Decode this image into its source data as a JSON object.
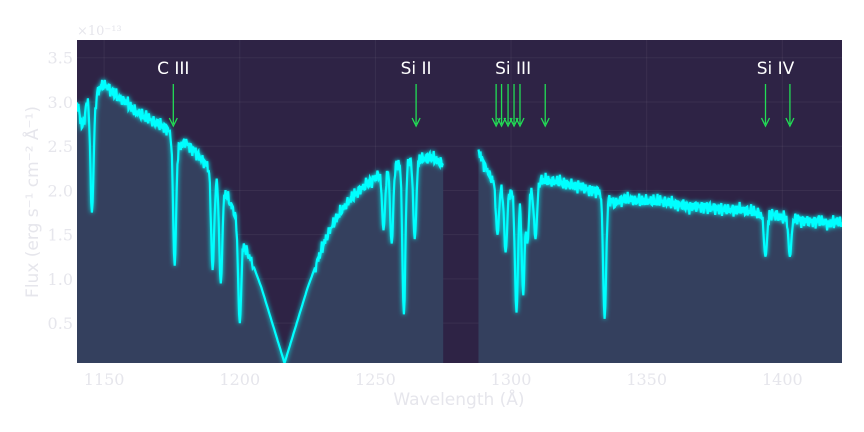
{
  "chart_data": {
    "type": "line",
    "title": "",
    "xlabel": "Wavelength (Å)",
    "ylabel": "Flux (erg s⁻¹ cm⁻² Å⁻¹)",
    "y_exponent_label": "×10⁻¹³",
    "y_scale_factor": 1e-13,
    "xlim": [
      1140,
      1422
    ],
    "ylim": [
      0.05,
      3.7
    ],
    "xticks": [
      1150,
      1200,
      1250,
      1300,
      1350,
      1400
    ],
    "yticks": [
      0.5,
      1.0,
      1.5,
      2.0,
      2.5,
      3.0,
      3.5
    ],
    "ytick_labels": [
      "0.5",
      "1.0",
      "1.5",
      "2.0",
      "2.5",
      "3.0",
      "3.5"
    ],
    "grid": true,
    "gap": [
      1275,
      1288
    ],
    "series": [
      {
        "name": "",
        "color": "#00ffff",
        "x": [
          1140,
          1142,
          1144,
          1146,
          1148,
          1150,
          1152,
          1155,
          1158,
          1161,
          1164,
          1167,
          1170,
          1173,
          1176,
          1178,
          1180,
          1183,
          1186,
          1189,
          1192,
          1195,
          1198,
          1200,
          1202,
          1205,
          1208,
          1211,
          1214,
          1216.5,
          1219,
          1222,
          1225,
          1228,
          1231,
          1234,
          1237,
          1240,
          1243,
          1246,
          1249,
          1252,
          1255,
          1258,
          1261,
          1264,
          1267,
          1270,
          1273,
          1275,
          1288,
          1290,
          1293,
          1296,
          1299,
          1302,
          1305,
          1308,
          1311,
          1314,
          1317,
          1320,
          1323,
          1326,
          1329,
          1332,
          1335,
          1338,
          1341,
          1344,
          1347,
          1350,
          1355,
          1360,
          1365,
          1370,
          1375,
          1380,
          1385,
          1390,
          1393,
          1396,
          1399,
          1402,
          1405,
          1408,
          1411,
          1414,
          1417,
          1420,
          1422
        ],
        "y": [
          3.0,
          2.7,
          3.05,
          2.9,
          3.15,
          3.2,
          3.15,
          3.05,
          3.0,
          2.9,
          2.85,
          2.8,
          2.75,
          2.7,
          2.6,
          2.5,
          2.55,
          2.45,
          2.35,
          2.25,
          2.1,
          1.95,
          1.75,
          1.55,
          1.35,
          1.15,
          0.9,
          0.6,
          0.3,
          0.05,
          0.3,
          0.6,
          0.9,
          1.15,
          1.4,
          1.6,
          1.75,
          1.87,
          1.97,
          2.05,
          2.12,
          2.2,
          2.25,
          2.3,
          2.33,
          2.35,
          2.35,
          2.38,
          2.33,
          2.3,
          2.45,
          2.3,
          2.12,
          2.05,
          2.0,
          1.95,
          2.05,
          2.0,
          2.12,
          2.1,
          2.1,
          2.08,
          2.05,
          2.05,
          2.0,
          2.0,
          1.95,
          1.85,
          1.9,
          1.9,
          1.88,
          1.88,
          1.88,
          1.85,
          1.82,
          1.82,
          1.8,
          1.78,
          1.78,
          1.75,
          1.72,
          1.73,
          1.7,
          1.7,
          1.68,
          1.66,
          1.65,
          1.66,
          1.62,
          1.65,
          1.63
        ]
      }
    ],
    "absorption_lines": [
      {
        "x": 1145.5,
        "min": 1.75
      },
      {
        "x": 1176,
        "min": 1.15
      },
      {
        "x": 1190,
        "min": 1.1
      },
      {
        "x": 1193,
        "min": 0.95
      },
      {
        "x": 1200,
        "min": 0.5
      },
      {
        "x": 1253,
        "min": 1.55
      },
      {
        "x": 1256,
        "min": 1.4
      },
      {
        "x": 1260.5,
        "min": 0.6
      },
      {
        "x": 1264.5,
        "min": 1.45
      },
      {
        "x": 1295,
        "min": 1.5
      },
      {
        "x": 1298,
        "min": 1.3
      },
      {
        "x": 1302,
        "min": 0.62
      },
      {
        "x": 1304.5,
        "min": 0.8
      },
      {
        "x": 1306,
        "min": 1.4
      },
      {
        "x": 1309,
        "min": 1.45
      },
      {
        "x": 1334.5,
        "min": 0.55
      },
      {
        "x": 1393.8,
        "min": 1.25
      },
      {
        "x": 1402.8,
        "min": 1.25
      }
    ],
    "line_markers": [
      {
        "label": "C III",
        "x": [
          1175.5
        ]
      },
      {
        "label": "Si II",
        "x": [
          1265
        ]
      },
      {
        "label": "Si III",
        "x": [
          1294.5,
          1296.5,
          1298.9,
          1301.1,
          1303.3,
          1312.6
        ]
      },
      {
        "label": "Si IV",
        "x": [
          1393.8,
          1402.8
        ]
      }
    ],
    "colors": {
      "background_above": "#2e2345",
      "fill_below": "#34405e",
      "line": "#00ffff",
      "marker": "#22dd55",
      "text": "#e6e6ec"
    }
  }
}
